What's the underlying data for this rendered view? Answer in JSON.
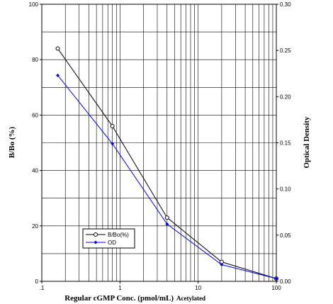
{
  "chart_data": {
    "type": "line",
    "xlabel": "Regular cGMP Conc. (pmol/mL)",
    "xlabel_suffix": "Acetylated",
    "ylabel": "B/Bo (%)",
    "y2label": "Optical Density",
    "x_scale": "log",
    "xlim": [
      0.1,
      100
    ],
    "ylim": [
      0,
      100
    ],
    "y2lim": [
      0,
      0.3
    ],
    "grid": true,
    "legend_placement": "bottom-left",
    "x_ticks": [
      {
        "value": 0.1,
        "label": ".1"
      },
      {
        "value": 1,
        "label": "1"
      },
      {
        "value": 10,
        "label": "10"
      },
      {
        "value": 100,
        "label": "100"
      }
    ],
    "y_ticks": [
      {
        "value": 0,
        "label": "0"
      },
      {
        "value": 20,
        "label": "20"
      },
      {
        "value": 40,
        "label": "40"
      },
      {
        "value": 60,
        "label": "60"
      },
      {
        "value": 80,
        "label": "80"
      },
      {
        "value": 100,
        "label": "100"
      }
    ],
    "y2_ticks": [
      {
        "value": 0.0,
        "label": "0.00"
      },
      {
        "value": 0.05,
        "label": "0.05"
      },
      {
        "value": 0.1,
        "label": "0.10"
      },
      {
        "value": 0.15,
        "label": "0.15"
      },
      {
        "value": 0.2,
        "label": "0.20"
      },
      {
        "value": 0.25,
        "label": "0.25"
      },
      {
        "value": 0.3,
        "label": "0.30"
      }
    ],
    "series": [
      {
        "name": "B/Bo(%)",
        "axis": "left",
        "color": "#000000",
        "marker": "open-circle",
        "x": [
          0.16,
          0.8,
          4,
          20,
          100
        ],
        "y": [
          84,
          56,
          23,
          7,
          1
        ]
      },
      {
        "name": "OD",
        "axis": "right",
        "color": "#0000ff",
        "marker": "filled-diamond",
        "x": [
          0.16,
          0.8,
          4,
          20,
          100
        ],
        "y": [
          0.223,
          0.149,
          0.062,
          0.018,
          0.003
        ]
      }
    ]
  }
}
